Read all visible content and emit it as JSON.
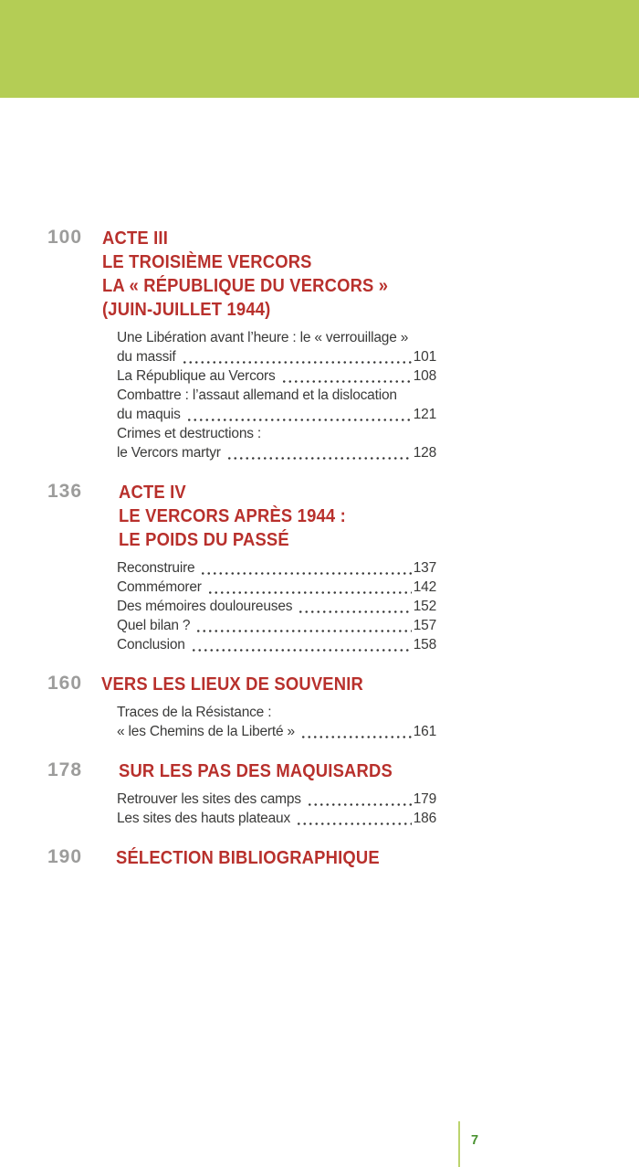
{
  "colors": {
    "band_green": "#b4cd55",
    "heading_red": "#b8302c",
    "number_gray": "#9c9c9b",
    "text_ink": "#3a3a39",
    "folio_green": "#4a9231",
    "footer_line_green": "#bcd46e"
  },
  "footer": {
    "page_number": "7"
  },
  "toc": {
    "sections": [
      {
        "start_page": "100",
        "heading_lines": [
          "ACTE III",
          "LE TROISIÈME VERCORS",
          "LA « RÉPUBLIQUE DU VERCORS »",
          "(JUIN-JUILLET 1944)"
        ],
        "entries": [
          {
            "lines": [
              {
                "text": "Une Libération avant l’heure : le « verrouillage »"
              },
              {
                "text": "du massif",
                "page": "101"
              }
            ]
          },
          {
            "lines": [
              {
                "text": "La République au Vercors",
                "page": "108"
              }
            ]
          },
          {
            "lines": [
              {
                "text": "Combattre : l’assaut allemand et la dislocation"
              },
              {
                "text": "du maquis",
                "page": "121"
              }
            ]
          },
          {
            "lines": [
              {
                "text": "Crimes et destructions :"
              },
              {
                "text": "le Vercors martyr",
                "page": "128"
              }
            ]
          }
        ]
      },
      {
        "start_page": "136",
        "heading_lines": [
          "ACTE IV",
          "LE VERCORS APRÈS 1944 :",
          "LE POIDS DU PASSÉ"
        ],
        "entries": [
          {
            "lines": [
              {
                "text": "Reconstruire",
                "page": "137"
              }
            ]
          },
          {
            "lines": [
              {
                "text": "Commémorer",
                "page": "142"
              }
            ]
          },
          {
            "lines": [
              {
                "text": "Des mémoires douloureuses",
                "page": "152"
              }
            ]
          },
          {
            "lines": [
              {
                "text": "Quel bilan ?",
                "page": "157"
              }
            ]
          },
          {
            "lines": [
              {
                "text": "Conclusion",
                "page": "158"
              }
            ]
          }
        ]
      },
      {
        "start_page": "160",
        "heading_lines": [
          "VERS LES LIEUX DE SOUVENIR"
        ],
        "entries": [
          {
            "lines": [
              {
                "text": "Traces de la Résistance :"
              },
              {
                "text": "« les Chemins de la Liberté »",
                "page": "161"
              }
            ]
          }
        ]
      },
      {
        "start_page": "178",
        "heading_lines": [
          "SUR LES PAS DES MAQUISARDS"
        ],
        "entries": [
          {
            "lines": [
              {
                "text": "Retrouver les sites des camps",
                "page": "179"
              }
            ]
          },
          {
            "lines": [
              {
                "text": "Les sites des hauts plateaux",
                "page": "186"
              }
            ]
          }
        ]
      },
      {
        "start_page": "190",
        "heading_lines": [
          "SÉLECTION BIBLIOGRAPHIQUE"
        ],
        "entries": []
      }
    ]
  }
}
